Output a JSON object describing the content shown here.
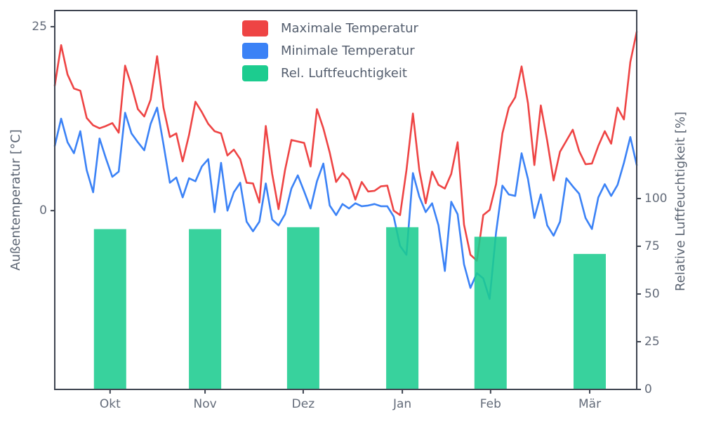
{
  "chart_data": {
    "type": "mixed",
    "title": "",
    "grid": false,
    "background": "#ffffff",
    "legend_position": "upper center-left",
    "x_axis": {
      "range_days": [
        0,
        182
      ],
      "ticks": [
        {
          "label": "Okt",
          "day": 17.3
        },
        {
          "label": "Nov",
          "day": 47.0
        },
        {
          "label": "Dez",
          "day": 77.7
        },
        {
          "label": "Jan",
          "day": 108.7
        },
        {
          "label": "Feb",
          "day": 136.3
        },
        {
          "label": "Mär",
          "day": 167.3
        }
      ]
    },
    "temperature_axis": {
      "side": "left",
      "label": "Außentemperatur [°C]",
      "ticks": [
        0,
        25
      ],
      "range": [
        -24.3,
        27.2
      ]
    },
    "humidity_axis": {
      "side": "right",
      "label": "Relative Luftfeuchtigkeit [%]",
      "ticks": [
        0,
        25,
        50,
        75,
        100
      ],
      "range": [
        0,
        198.5
      ]
    },
    "day_start": 0,
    "day_step": 2,
    "series": [
      {
        "name": "Maximale Temperatur",
        "type": "line",
        "axis": "temperature",
        "color": "#ee4444",
        "values": [
          17.0,
          22.5,
          18.5,
          16.6,
          16.3,
          12.6,
          11.6,
          11.2,
          11.5,
          11.9,
          10.6,
          19.7,
          17.0,
          13.8,
          12.8,
          15.1,
          21.0,
          14.0,
          10.0,
          10.5,
          6.7,
          10.3,
          14.8,
          13.4,
          11.8,
          10.8,
          10.5,
          7.5,
          8.3,
          7.0,
          3.8,
          3.7,
          1.1,
          11.5,
          5.0,
          0.2,
          5.5,
          9.6,
          9.4,
          9.2,
          6.0,
          13.8,
          11.2,
          7.9,
          3.9,
          5.1,
          4.2,
          1.5,
          3.9,
          2.6,
          2.7,
          3.3,
          3.4,
          0.0,
          -0.6,
          5.5,
          13.2,
          5.5,
          1.0,
          5.3,
          3.5,
          3.0,
          5.0,
          9.3,
          -1.9,
          -6.0,
          -6.8,
          -0.6,
          0.1,
          3.6,
          10.5,
          14.0,
          15.4,
          19.6,
          14.6,
          6.2,
          14.3,
          9.5,
          4.1,
          8.0,
          9.5,
          11.0,
          8.1,
          6.3,
          6.4,
          8.8,
          10.8,
          9.1,
          14.0,
          12.4,
          20.2,
          24.3
        ]
      },
      {
        "name": "Minimale Temperatur",
        "type": "line",
        "axis": "temperature",
        "color": "#3b82f6",
        "values": [
          8.8,
          12.5,
          9.3,
          7.8,
          10.8,
          5.5,
          2.5,
          9.8,
          7.1,
          4.6,
          5.3,
          13.3,
          10.5,
          9.3,
          8.2,
          11.8,
          14.0,
          9.0,
          3.8,
          4.5,
          1.8,
          4.4,
          4.0,
          6.0,
          7.0,
          -0.2,
          6.5,
          0.0,
          2.5,
          3.8,
          -1.5,
          -2.8,
          -1.5,
          3.7,
          -1.2,
          -2.0,
          -0.5,
          3.0,
          4.8,
          2.6,
          0.3,
          4.0,
          6.4,
          0.7,
          -0.6,
          0.9,
          0.3,
          1.0,
          0.6,
          0.7,
          0.9,
          0.6,
          0.6,
          -0.8,
          -4.8,
          -6.0,
          5.1,
          1.9,
          -0.2,
          1.0,
          -2.0,
          -8.2,
          1.2,
          -0.5,
          -7.3,
          -10.5,
          -8.5,
          -9.2,
          -12.0,
          -3.0,
          3.4,
          2.2,
          2.0,
          7.8,
          4.3,
          -1.0,
          2.2,
          -2.0,
          -3.4,
          -1.5,
          4.4,
          3.3,
          2.3,
          -1.0,
          -2.5,
          1.8,
          3.6,
          2.0,
          3.5,
          6.5,
          10.0,
          6.2
        ]
      },
      {
        "name": "Rel. Luftfeuchtigkeit",
        "type": "bar",
        "axis": "humidity",
        "color": "#1ccc8f",
        "opacity": 0.88,
        "categories": [
          "Okt",
          "Nov",
          "Dez",
          "Jan",
          "Feb",
          "Mär"
        ],
        "values": [
          84,
          84,
          85,
          85,
          80,
          71
        ],
        "bar_center_days": [
          17.3,
          47.0,
          77.7,
          108.7,
          136.3,
          167.3
        ],
        "bar_width_days": 10.1
      }
    ],
    "colors": {
      "spine": "#3e4450",
      "tick_text": "#636b79",
      "text": "#5b6472"
    }
  }
}
